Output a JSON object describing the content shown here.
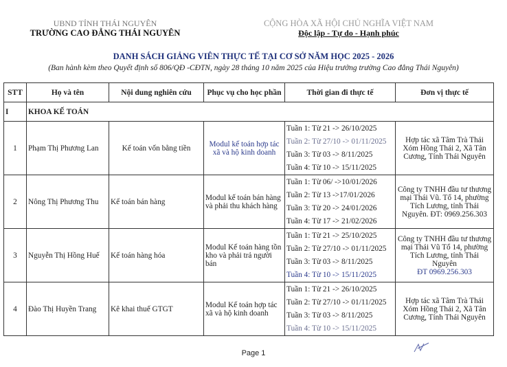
{
  "header": {
    "org_parent": "UBND TỈNH THÁI NGUYÊN",
    "org_name": "TRƯỜNG CAO ĐẲNG THÁI NGUYÊN",
    "nation": "CỘNG HÒA XÃ HỘI CHỦ NGHĨA VIỆT NAM",
    "motto": "Độc lập - Tự do - Hạnh phúc"
  },
  "title": "DANH SÁCH GIẢNG VIÊN THỰC TẾ TẠI CƠ SỞ NĂM HỌC 2025 - 2026",
  "subtitle": "(Ban hành kèm theo Quyết định số 806/QĐ -CĐTN, ngày 28  tháng 10 năm 2025 của Hiệu trưởng trường Cao đẳng Thái Nguyên)",
  "table": {
    "columns": [
      "STT",
      "Họ và tên",
      "Nội dung nghiên cứu",
      "Phục vụ cho học phần",
      "Thời gian đi thực tế",
      "Đơn vị thực tế"
    ],
    "section": {
      "index": "I",
      "label": "KHOA KẾ TOÁN"
    },
    "rows": [
      {
        "stt": "1",
        "name": "Phạm Thị Phương Lan",
        "research": "Kế toán vốn bằng tiền",
        "module": "Modul kế toán hợp tác xã và hộ kinh doanh",
        "weeks": [
          "Tuần 1: Từ 21 -> 26/10/2025",
          "Tuần 2: Từ 27/10 -> 01/11/2025",
          "Tuần 3: Từ 03  -> 8/11/2025",
          "Tuần 4: Từ 10  -> 15/11/2025"
        ],
        "unit": "Hợp tác xã Tâm Trà Thái Xóm Hồng Thái 2, Xã Tân Cương, Tỉnh Thái Nguyên"
      },
      {
        "stt": "2",
        "name": "Nông Thị Phương Thu",
        "research": "Kế toán bán hàng",
        "module": "Modul kế toán bán hàng và phải thu khách hàng",
        "weeks": [
          "Tuần 1: Từ 06/ ->10/01/2026",
          "Tuần 2: Từ 13 ->17/01/2026",
          "Tuần 3: Từ 20  -> 24/01/2026",
          "Tuần 4: Từ 17 -> 21/02/2026"
        ],
        "unit": "Công ty TNHH đầu tư thương mại Thái Vũ. Tổ 14, phường Tích Lương, tỉnh Thái Nguyên. ĐT: 0969.256.303"
      },
      {
        "stt": "3",
        "name": "Nguyễn Thị Hồng Huế",
        "research": "Kế toán hàng hóa",
        "module": "Modul Kế toán hàng tồn kho và phải trả người bán",
        "weeks": [
          "Tuần 1: Từ 21 -> 25/10/2025",
          "Tuần 2: Từ 27/10 -> 01/11/2025",
          "Tuần 3: Từ 03  -> 8/11/2025",
          "Tuần 4: Từ 10  -> 15/11/2025"
        ],
        "unit": "Công ty TNHH đầu tư thương mại Thái Vũ Tổ 14, phường Tích Lương, tỉnh Thái Nguyên",
        "unit_phone": "ĐT 0969.256.303"
      },
      {
        "stt": "4",
        "name": "Đào Thị Huyền Trang",
        "research": "Kê khai thuế GTGT",
        "module": "Modul Kế toán hợp tác xã và hộ kinh doanh",
        "weeks": [
          "Tuần 1: Từ 21 -> 26/10/2025",
          "Tuần 2: Từ 27/10 -> 01/11/2025",
          "Tuần 3: Từ 03 -> 8/11/2025",
          "Tuần 4: Từ 10 -> 15/11/2025"
        ],
        "unit": "Hợp tác xã Tâm Trà Thái Xóm Hồng Thái 2, Xã Tân Cương, Tỉnh Thái Nguyên"
      }
    ]
  },
  "footer": {
    "page_label": "Page 1"
  },
  "colors": {
    "title": "#1d2f7a",
    "accent_blue": "#2b3a8c"
  }
}
